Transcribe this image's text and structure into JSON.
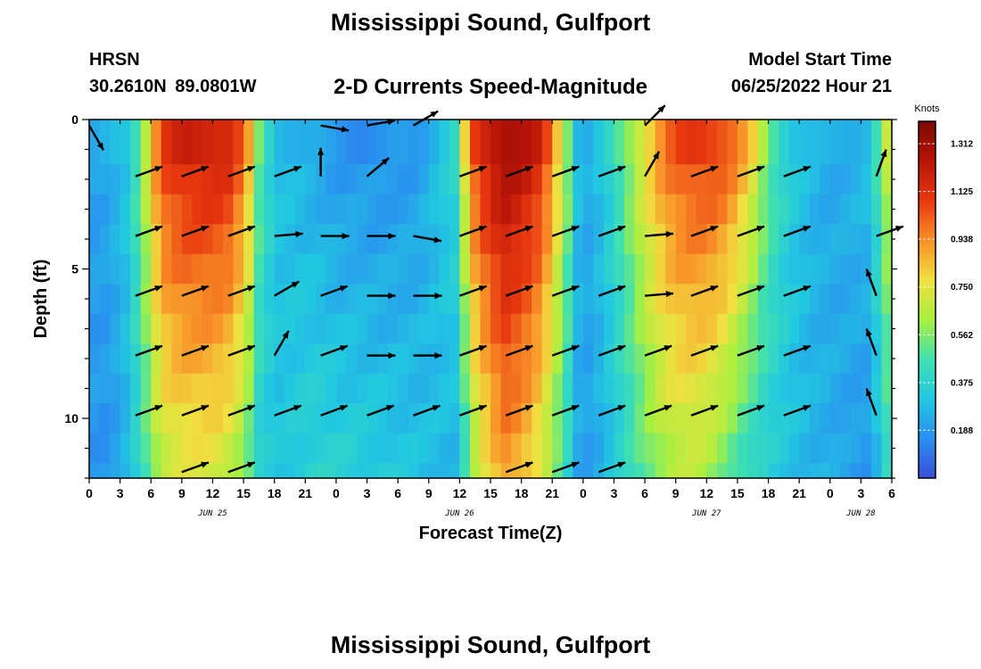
{
  "header": {
    "title": "Mississippi Sound, Gulfport",
    "station": "HRSN",
    "coords": "30.2610N  89.0801W",
    "subtitle": "2-D Currents Speed-Magnitude",
    "model_start_label": "Model Start Time",
    "model_start_value": "06/25/2022 Hour 21"
  },
  "footer": {
    "title": "Mississippi Sound, Gulfport"
  },
  "chart_data": {
    "type": "heatmap",
    "title": "2-D Currents Speed-Magnitude",
    "xlabel": "Forecast Time(Z)",
    "ylabel": "Depth (ft)",
    "x_start_hour": 0,
    "x_end_hour": 78,
    "x_tick_labels": [
      "0",
      "3",
      "6",
      "9",
      "12",
      "15",
      "18",
      "21",
      "0",
      "3",
      "6",
      "9",
      "12",
      "15",
      "18",
      "21",
      "0",
      "3",
      "6",
      "9",
      "12",
      "15",
      "18",
      "21",
      "0",
      "3",
      "6"
    ],
    "date_labels": [
      {
        "text": "JUN 25",
        "hour": 12
      },
      {
        "text": "JUN 26",
        "hour": 36
      },
      {
        "text": "JUN 27",
        "hour": 60
      },
      {
        "text": "JUN 28",
        "hour": 75
      }
    ],
    "y_ticks": [
      0,
      5,
      10
    ],
    "ylim": [
      12,
      0
    ],
    "depths_ft": [
      0,
      1.5,
      2.5,
      3.5,
      4.5,
      5.5,
      6.5,
      7.5,
      8.5,
      9.5,
      10.5,
      11.5
    ],
    "colorbar": {
      "unit": "Knots",
      "min": 0.0,
      "max": 1.4,
      "tick_labels": [
        "1.312",
        "1.125",
        "0.938",
        "0.750",
        "0.562",
        "0.375",
        "0.188"
      ],
      "tick_values": [
        1.312,
        1.125,
        0.938,
        0.75,
        0.562,
        0.375,
        0.188
      ],
      "colors": [
        "#3a4fd8",
        "#2a8ff0",
        "#22c8e0",
        "#40e0b0",
        "#a8f040",
        "#f0e040",
        "#f89028",
        "#e83810",
        "#b81408",
        "#7a0a04"
      ]
    },
    "profile": {
      "hours": [
        0,
        2,
        3.5,
        5,
        6,
        7,
        9,
        12,
        14,
        15.5,
        16.5,
        18,
        20,
        22,
        24,
        28,
        32,
        35.5,
        36.5,
        37.5,
        39,
        40.5,
        42,
        44,
        46,
        47.5,
        48.5,
        50,
        52,
        54,
        56,
        58,
        60,
        62,
        64,
        66,
        68,
        70,
        72,
        74,
        75.5,
        77,
        78
      ],
      "surface_knots": [
        0.2,
        0.25,
        0.32,
        0.55,
        0.85,
        1.12,
        1.22,
        1.24,
        1.2,
        0.9,
        0.55,
        0.3,
        0.26,
        0.2,
        0.16,
        0.14,
        0.18,
        0.4,
        0.8,
        1.12,
        1.28,
        1.34,
        1.3,
        1.2,
        0.75,
        0.3,
        0.25,
        0.32,
        0.55,
        0.8,
        1.02,
        1.12,
        1.15,
        1.1,
        0.9,
        0.55,
        0.35,
        0.27,
        0.22,
        0.26,
        0.3,
        0.55,
        0.85
      ],
      "bottom_knots": [
        0.18,
        0.16,
        0.25,
        0.4,
        0.55,
        0.66,
        0.72,
        0.72,
        0.66,
        0.5,
        0.35,
        0.3,
        0.34,
        0.38,
        0.36,
        0.34,
        0.3,
        0.26,
        0.42,
        0.62,
        0.8,
        0.9,
        0.85,
        0.7,
        0.45,
        0.22,
        0.2,
        0.26,
        0.38,
        0.52,
        0.62,
        0.66,
        0.62,
        0.52,
        0.4,
        0.34,
        0.3,
        0.26,
        0.24,
        0.2,
        0.18,
        0.3,
        0.5
      ]
    },
    "vector_rows_ft": [
      0.2,
      1.9,
      3.9,
      5.9,
      7.9,
      9.9,
      11.8
    ],
    "vector_columns_hours": [
      0,
      4.5,
      9,
      13.5,
      18,
      22.5,
      27,
      31.5,
      36,
      40.5,
      45,
      49.5,
      54,
      58.5,
      63,
      67.5,
      72,
      76.5
    ],
    "vectors_deg": [
      [
        300,
        null,
        null,
        null,
        null,
        -10,
        10,
        30,
        null,
        null,
        null,
        null,
        45,
        null,
        null,
        null,
        null,
        null
      ],
      [
        null,
        20,
        20,
        20,
        20,
        90,
        40,
        null,
        20,
        20,
        20,
        20,
        60,
        20,
        20,
        20,
        null,
        70
      ],
      [
        null,
        20,
        20,
        20,
        5,
        0,
        0,
        350,
        20,
        20,
        20,
        20,
        5,
        20,
        20,
        20,
        null,
        20
      ],
      [
        null,
        20,
        20,
        20,
        30,
        20,
        0,
        0,
        20,
        20,
        20,
        20,
        5,
        20,
        20,
        20,
        null,
        110
      ],
      [
        null,
        20,
        20,
        20,
        60,
        20,
        0,
        0,
        20,
        20,
        20,
        20,
        20,
        20,
        20,
        20,
        null,
        110
      ],
      [
        null,
        20,
        20,
        20,
        20,
        20,
        20,
        20,
        20,
        20,
        20,
        20,
        20,
        20,
        20,
        20,
        null,
        110
      ],
      [
        null,
        null,
        20,
        20,
        null,
        null,
        null,
        null,
        null,
        20,
        20,
        20,
        null,
        null,
        null,
        null,
        null,
        null
      ]
    ],
    "vector_lengths_px": 32
  }
}
